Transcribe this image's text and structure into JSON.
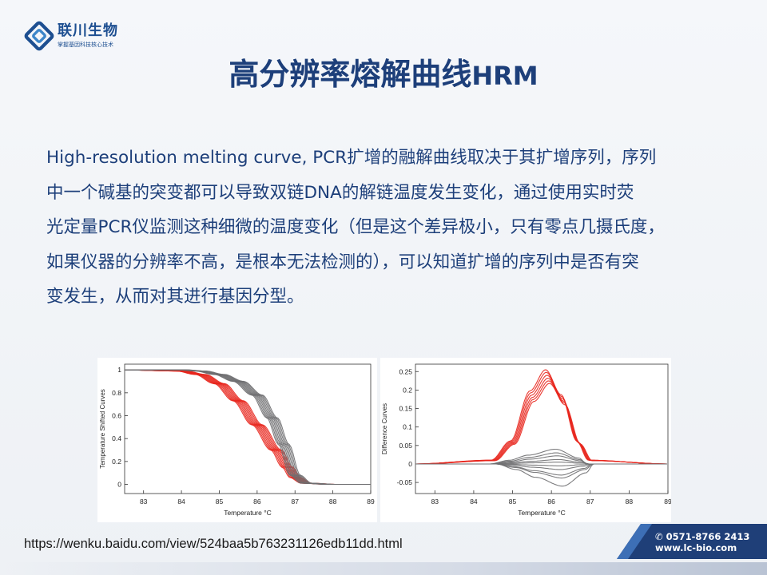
{
  "brand": {
    "name": "联川生物",
    "slogan": "掌握基因科技核心技术"
  },
  "title": {
    "main": "高分辨率熔解曲线",
    "suffix": "HRM"
  },
  "body_lines": [
    "High-resolution melting curve, PCR扩增的融解曲线取决于其扩增序列，序列",
    "中一个碱基的突变都可以导致双链DNA的解链温度发生变化，通过使用实时荧",
    "光定量PCR仪监测这种细微的温度变化（但是这个差异极小，只有零点几摄氏度，",
    "如果仪器的分辨率不高，是根本无法检测的），可以知道扩增的序列中是否有突",
    "变发生，从而对其进行基因分型。"
  ],
  "source_url": "https://wenku.baidu.com/view/524baa5b763231126edb11dd.html",
  "contact": {
    "phone": "0571-8766 2413",
    "website": "www.lc-bio.com"
  },
  "colors": {
    "title": "#1d3f7a",
    "accent": "#1d4f91",
    "series_red": "#e8251c",
    "series_gray": "#6e6e70"
  },
  "chart_data": [
    {
      "type": "line",
      "xlabel": "Temperature °C",
      "ylabel": "Temperature Shifted Curves",
      "xlim": [
        82.5,
        89
      ],
      "ylim": [
        -0.08,
        1.05
      ],
      "xticks": [
        83,
        84,
        85,
        86,
        87,
        88,
        89
      ],
      "yticks": [
        0,
        0.2,
        0.4,
        0.6,
        0.8,
        1
      ],
      "ytick_labels": [
        "0",
        "0.2",
        "0.4",
        "0.6",
        "0.8",
        "1"
      ],
      "series": [
        {
          "color": "red",
          "count": 9,
          "x": [
            82.5,
            84.0,
            84.5,
            85.0,
            85.5,
            86.0,
            86.5,
            86.8,
            87.0,
            87.3,
            88.0,
            89.0
          ],
          "values": [
            1.0,
            0.99,
            0.96,
            0.88,
            0.73,
            0.52,
            0.3,
            0.15,
            0.06,
            0.01,
            0.0,
            0.0
          ]
        },
        {
          "color": "gray",
          "count": 9,
          "x": [
            82.5,
            84.0,
            84.5,
            85.0,
            85.5,
            86.0,
            86.4,
            86.7,
            87.0,
            87.3,
            88.0,
            89.0
          ],
          "values": [
            1.0,
            1.0,
            0.99,
            0.96,
            0.9,
            0.78,
            0.58,
            0.35,
            0.08,
            0.01,
            0.0,
            0.0
          ]
        }
      ]
    },
    {
      "type": "line",
      "xlabel": "Temperature °C",
      "ylabel": "Difference Curves",
      "xlim": [
        82.5,
        89
      ],
      "ylim": [
        -0.08,
        0.27
      ],
      "xticks": [
        83,
        84,
        85,
        86,
        87,
        88,
        89
      ],
      "yticks": [
        -0.05,
        0,
        0.05,
        0.1,
        0.15,
        0.2,
        0.25
      ],
      "ytick_labels": [
        "-0.05",
        "0",
        "0.05",
        "0.1",
        "0.15",
        "0.2",
        "0.25"
      ],
      "series": [
        {
          "color": "red",
          "count": 6,
          "peak_x": 85.9,
          "peak_values": [
            0.255,
            0.248,
            0.24,
            0.232,
            0.225,
            0.218
          ],
          "x": [
            82.5,
            84.5,
            85.0,
            85.5,
            85.9,
            86.3,
            86.7,
            87.0,
            89.0
          ],
          "values": [
            0.0,
            0.01,
            0.06,
            0.19,
            0.245,
            0.18,
            0.06,
            0.01,
            0.0
          ]
        },
        {
          "color": "gray",
          "count": 10,
          "peak_x": 86.2,
          "peak_values": [
            0.04,
            0.03,
            0.022,
            0.012,
            0.005,
            -0.005,
            -0.015,
            -0.03,
            -0.038,
            -0.06
          ],
          "x": [
            82.5,
            84.5,
            85.0,
            85.5,
            86.2,
            86.8,
            87.0,
            89.0
          ],
          "values": [
            0.0,
            0.0,
            0.005,
            0.012,
            0.02,
            0.008,
            0.0,
            0.0
          ]
        }
      ]
    }
  ]
}
